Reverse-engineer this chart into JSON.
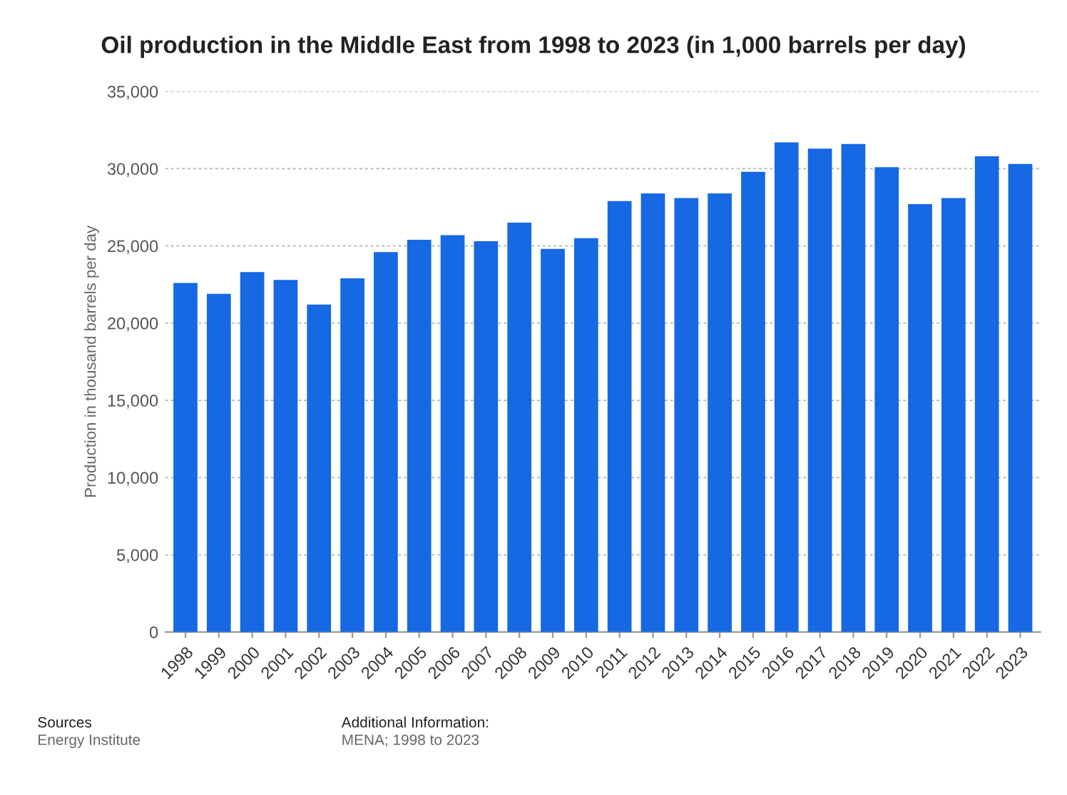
{
  "chart_data": {
    "type": "bar",
    "title": "Oil production in the Middle East from 1998 to 2023 (in 1,000 barrels per day)",
    "ylabel": "Production in thousand barrels per day",
    "categories": [
      "1998",
      "1999",
      "2000",
      "2001",
      "2002",
      "2003",
      "2004",
      "2005",
      "2006",
      "2007",
      "2008",
      "2009",
      "2010",
      "2011",
      "2012",
      "2013",
      "2014",
      "2015",
      "2016",
      "2017",
      "2018",
      "2019",
      "2020",
      "2021",
      "2022",
      "2023"
    ],
    "values": [
      22600,
      21900,
      23300,
      22800,
      21200,
      22900,
      24600,
      25400,
      25700,
      25300,
      26500,
      24800,
      25500,
      27900,
      28400,
      28100,
      28400,
      29800,
      31700,
      31300,
      31600,
      30100,
      27700,
      28100,
      30800,
      30300
    ],
    "color": "#1668e3",
    "ylim": [
      0,
      35000
    ],
    "yticks": [
      {
        "value": 0,
        "label": "0"
      },
      {
        "value": 5000,
        "label": "5,000"
      },
      {
        "value": 10000,
        "label": "10,000"
      },
      {
        "value": 15000,
        "label": "15,000"
      },
      {
        "value": 20000,
        "label": "20,000"
      },
      {
        "value": 25000,
        "label": "25,000"
      },
      {
        "value": 30000,
        "label": "30,000"
      },
      {
        "value": 35000,
        "label": "35,000"
      }
    ],
    "grid": "y",
    "annotations": [
      "Sources",
      "Energy Institute",
      "Additional Information:",
      "MENA; 1998 to 2023"
    ]
  }
}
